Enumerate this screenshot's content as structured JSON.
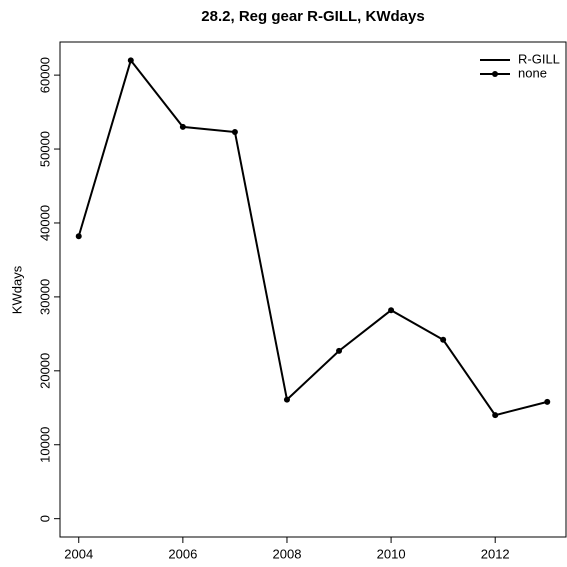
{
  "chart_data": {
    "type": "line",
    "title": "28.2, Reg gear R-GILL, KWdays",
    "y_label": "KWdays",
    "x": [
      2004,
      2005,
      2006,
      2007,
      2008,
      2009,
      2010,
      2011,
      2012,
      2013
    ],
    "series": [
      {
        "color": "#000000",
        "values": [
          38200,
          62000,
          53000,
          52300,
          16100,
          22700,
          28200,
          24200,
          14000,
          15800
        ]
      }
    ],
    "legend": [
      {
        "label": "R-GILL",
        "symbol": "line"
      },
      {
        "label": "none",
        "symbol": "line-point"
      }
    ],
    "legend_position": "top-right",
    "xlim": [
      2003.64,
      2013.36
    ],
    "xticks": [
      2004,
      2006,
      2008,
      2010,
      2012
    ],
    "ylim": [
      -2480,
      64480
    ],
    "yticks": [
      0,
      10000,
      20000,
      30000,
      40000,
      50000,
      60000
    ],
    "grid": false
  }
}
